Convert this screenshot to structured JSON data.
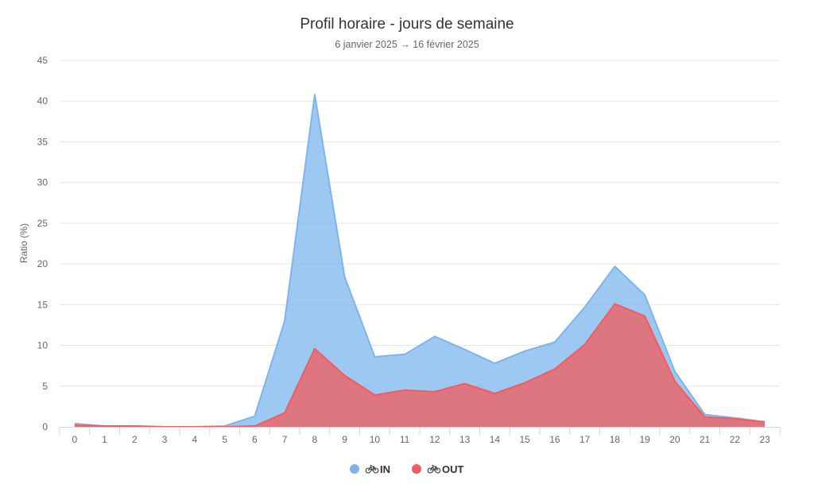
{
  "chart_data": {
    "type": "area",
    "title": "Profil horaire - jours de semaine",
    "subtitle": "6 janvier 2025 → 16 février 2025",
    "xlabel": "",
    "ylabel": "Ratio (%)",
    "ylim": [
      0,
      45
    ],
    "yticks": [
      0,
      5,
      10,
      15,
      20,
      25,
      30,
      35,
      40,
      45
    ],
    "categories": [
      "0",
      "1",
      "2",
      "3",
      "4",
      "5",
      "6",
      "7",
      "8",
      "9",
      "10",
      "11",
      "12",
      "13",
      "14",
      "15",
      "16",
      "17",
      "18",
      "19",
      "20",
      "21",
      "22",
      "23"
    ],
    "grid": true,
    "legend_position": "bottom-center",
    "series": [
      {
        "name": "IN",
        "color": "#7cb5ec",
        "icon": "bicycle-icon",
        "values": [
          0.4,
          0.1,
          0.1,
          0.0,
          0.0,
          0.1,
          1.3,
          13.0,
          40.8,
          18.4,
          8.6,
          8.9,
          11.1,
          9.5,
          7.8,
          9.3,
          10.4,
          14.7,
          19.7,
          16.2,
          6.8,
          1.5,
          1.1,
          0.6
        ]
      },
      {
        "name": "OUT",
        "color": "#f45b5b",
        "icon": "bicycle-icon",
        "values": [
          0.2,
          0.1,
          0.1,
          0.0,
          0.0,
          0.0,
          0.1,
          1.7,
          9.6,
          6.3,
          3.9,
          4.5,
          4.3,
          5.3,
          4.1,
          5.4,
          7.1,
          10.1,
          15.1,
          13.6,
          5.6,
          1.2,
          1.0,
          0.6
        ]
      }
    ]
  }
}
